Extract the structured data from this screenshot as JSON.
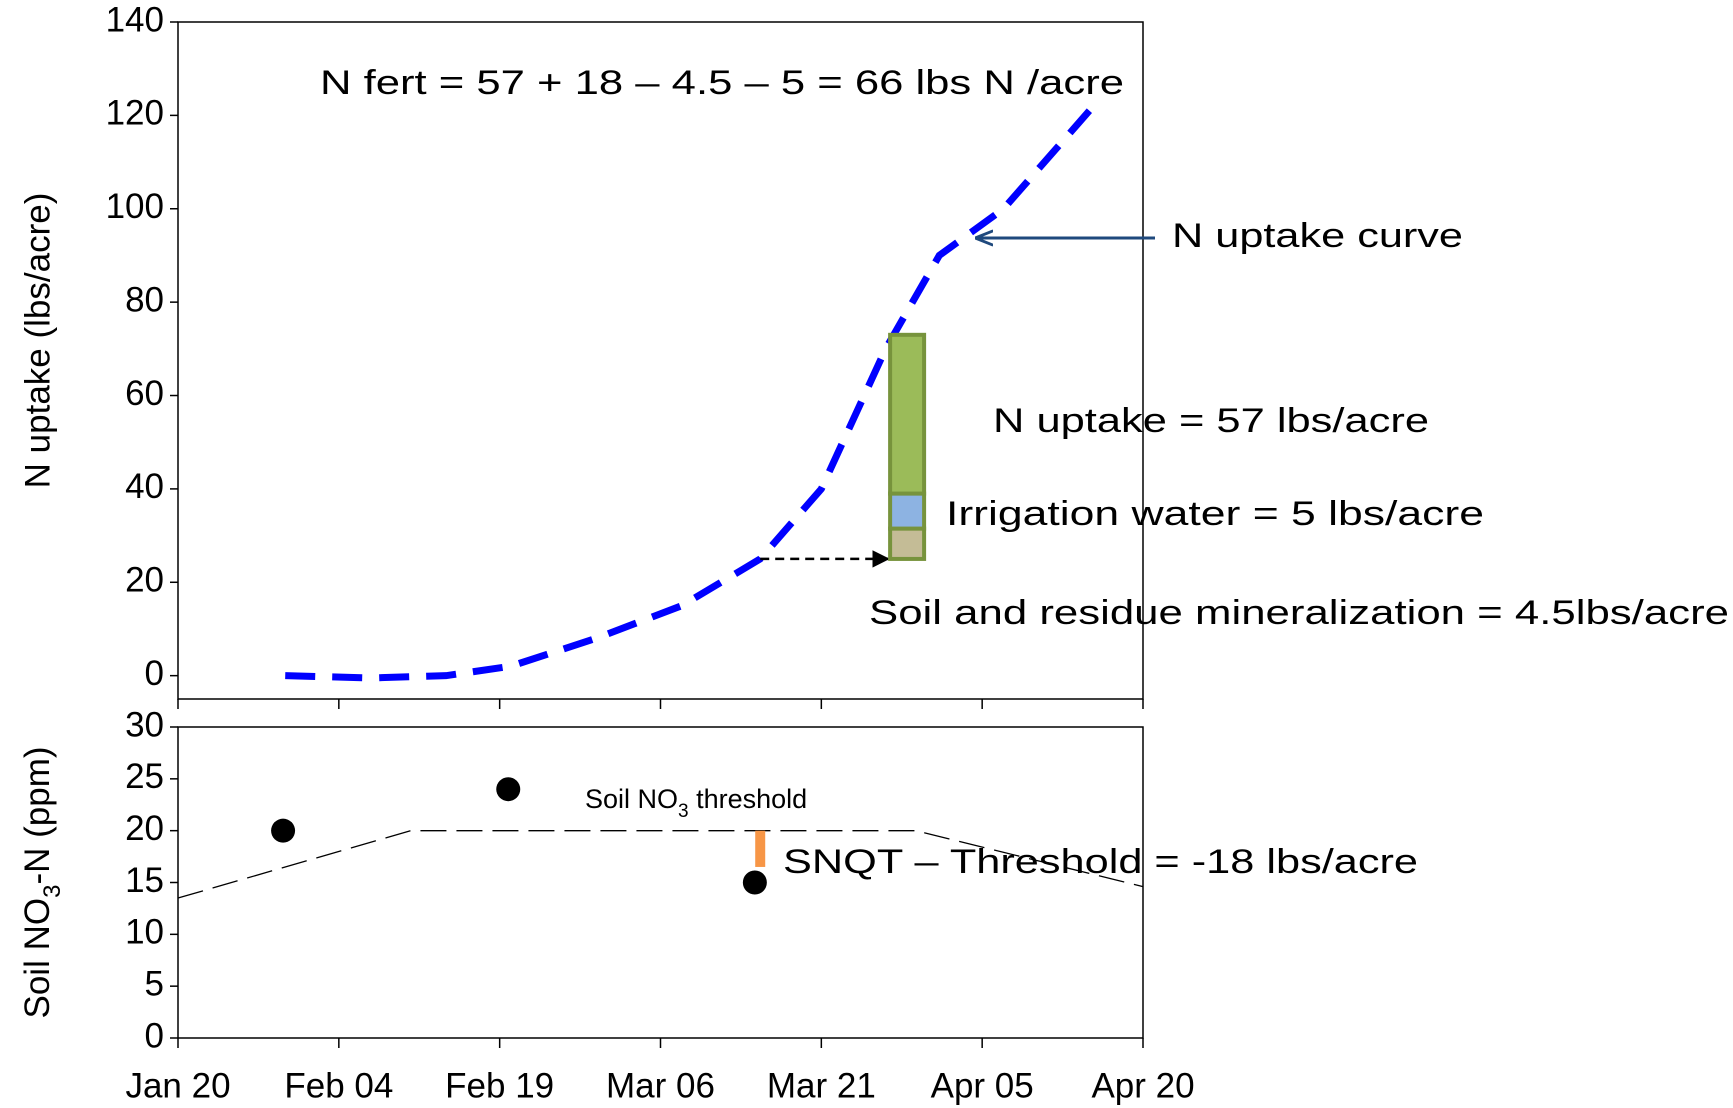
{
  "chart_data": [
    {
      "type": "line",
      "ylabel": "N uptake (lbs/acre)",
      "xlim": [
        20,
        110
      ],
      "ylim": [
        -5,
        140
      ],
      "yticks": [
        0,
        20,
        40,
        60,
        80,
        100,
        120,
        140
      ],
      "series": [
        {
          "name": "N uptake curve",
          "color": "#0000ff",
          "x": [
            30,
            38,
            45,
            51,
            59,
            67,
            74.3,
            80,
            86,
            91,
            97,
            105
          ],
          "values": [
            0,
            -0.5,
            0,
            2,
            8,
            15,
            25,
            40,
            70,
            90,
            100,
            121
          ]
        }
      ],
      "bar": {
        "x": 88,
        "base": 25,
        "border": "#77933c",
        "segments": [
          {
            "name": "Soil and residue mineralization = 4.5lbs/acre",
            "color": "#c4bc96",
            "value": 6.5
          },
          {
            "name": "Irrigation water = 5 lbs/acre",
            "color": "#8db3e2",
            "value": 7.5
          },
          {
            "name": "N uptake = 57 lbs/acre",
            "color": "#9bbb59",
            "value": 34
          }
        ]
      },
      "annotation": "N fert = 57 + 18 – 4.5 – 5  = 66 lbs N /acre"
    },
    {
      "type": "scatter",
      "ylabel": [
        "Soil NO",
        "3",
        "-N (ppm)"
      ],
      "xlim": [
        20,
        110
      ],
      "xticks": [
        {
          "value": 20,
          "label": "Jan 20"
        },
        {
          "value": 35,
          "label": "Feb 04"
        },
        {
          "value": 50,
          "label": "Feb 19"
        },
        {
          "value": 65,
          "label": "Mar 06"
        },
        {
          "value": 80,
          "label": "Mar 21"
        },
        {
          "value": 95,
          "label": "Apr 05"
        },
        {
          "value": 110,
          "label": "Apr 20"
        }
      ],
      "ylim": [
        0,
        30
      ],
      "yticks": [
        0,
        5,
        10,
        15,
        20,
        25,
        30
      ],
      "points": {
        "color": "#000000",
        "x": [
          29.8,
          50.8,
          73.8
        ],
        "values": [
          20,
          24,
          15
        ]
      },
      "threshold": {
        "label": [
          "Soil NO",
          "3",
          " threshold"
        ],
        "x": [
          20,
          41.7,
          88.8,
          110
        ],
        "values": [
          13.5,
          20,
          20,
          14.6
        ]
      },
      "difference": {
        "x": 74.3,
        "top": 20,
        "bottom": 16.5,
        "color": "#f79646"
      },
      "annotation": "SNQT – Threshold  = -18 lbs/acre"
    }
  ]
}
